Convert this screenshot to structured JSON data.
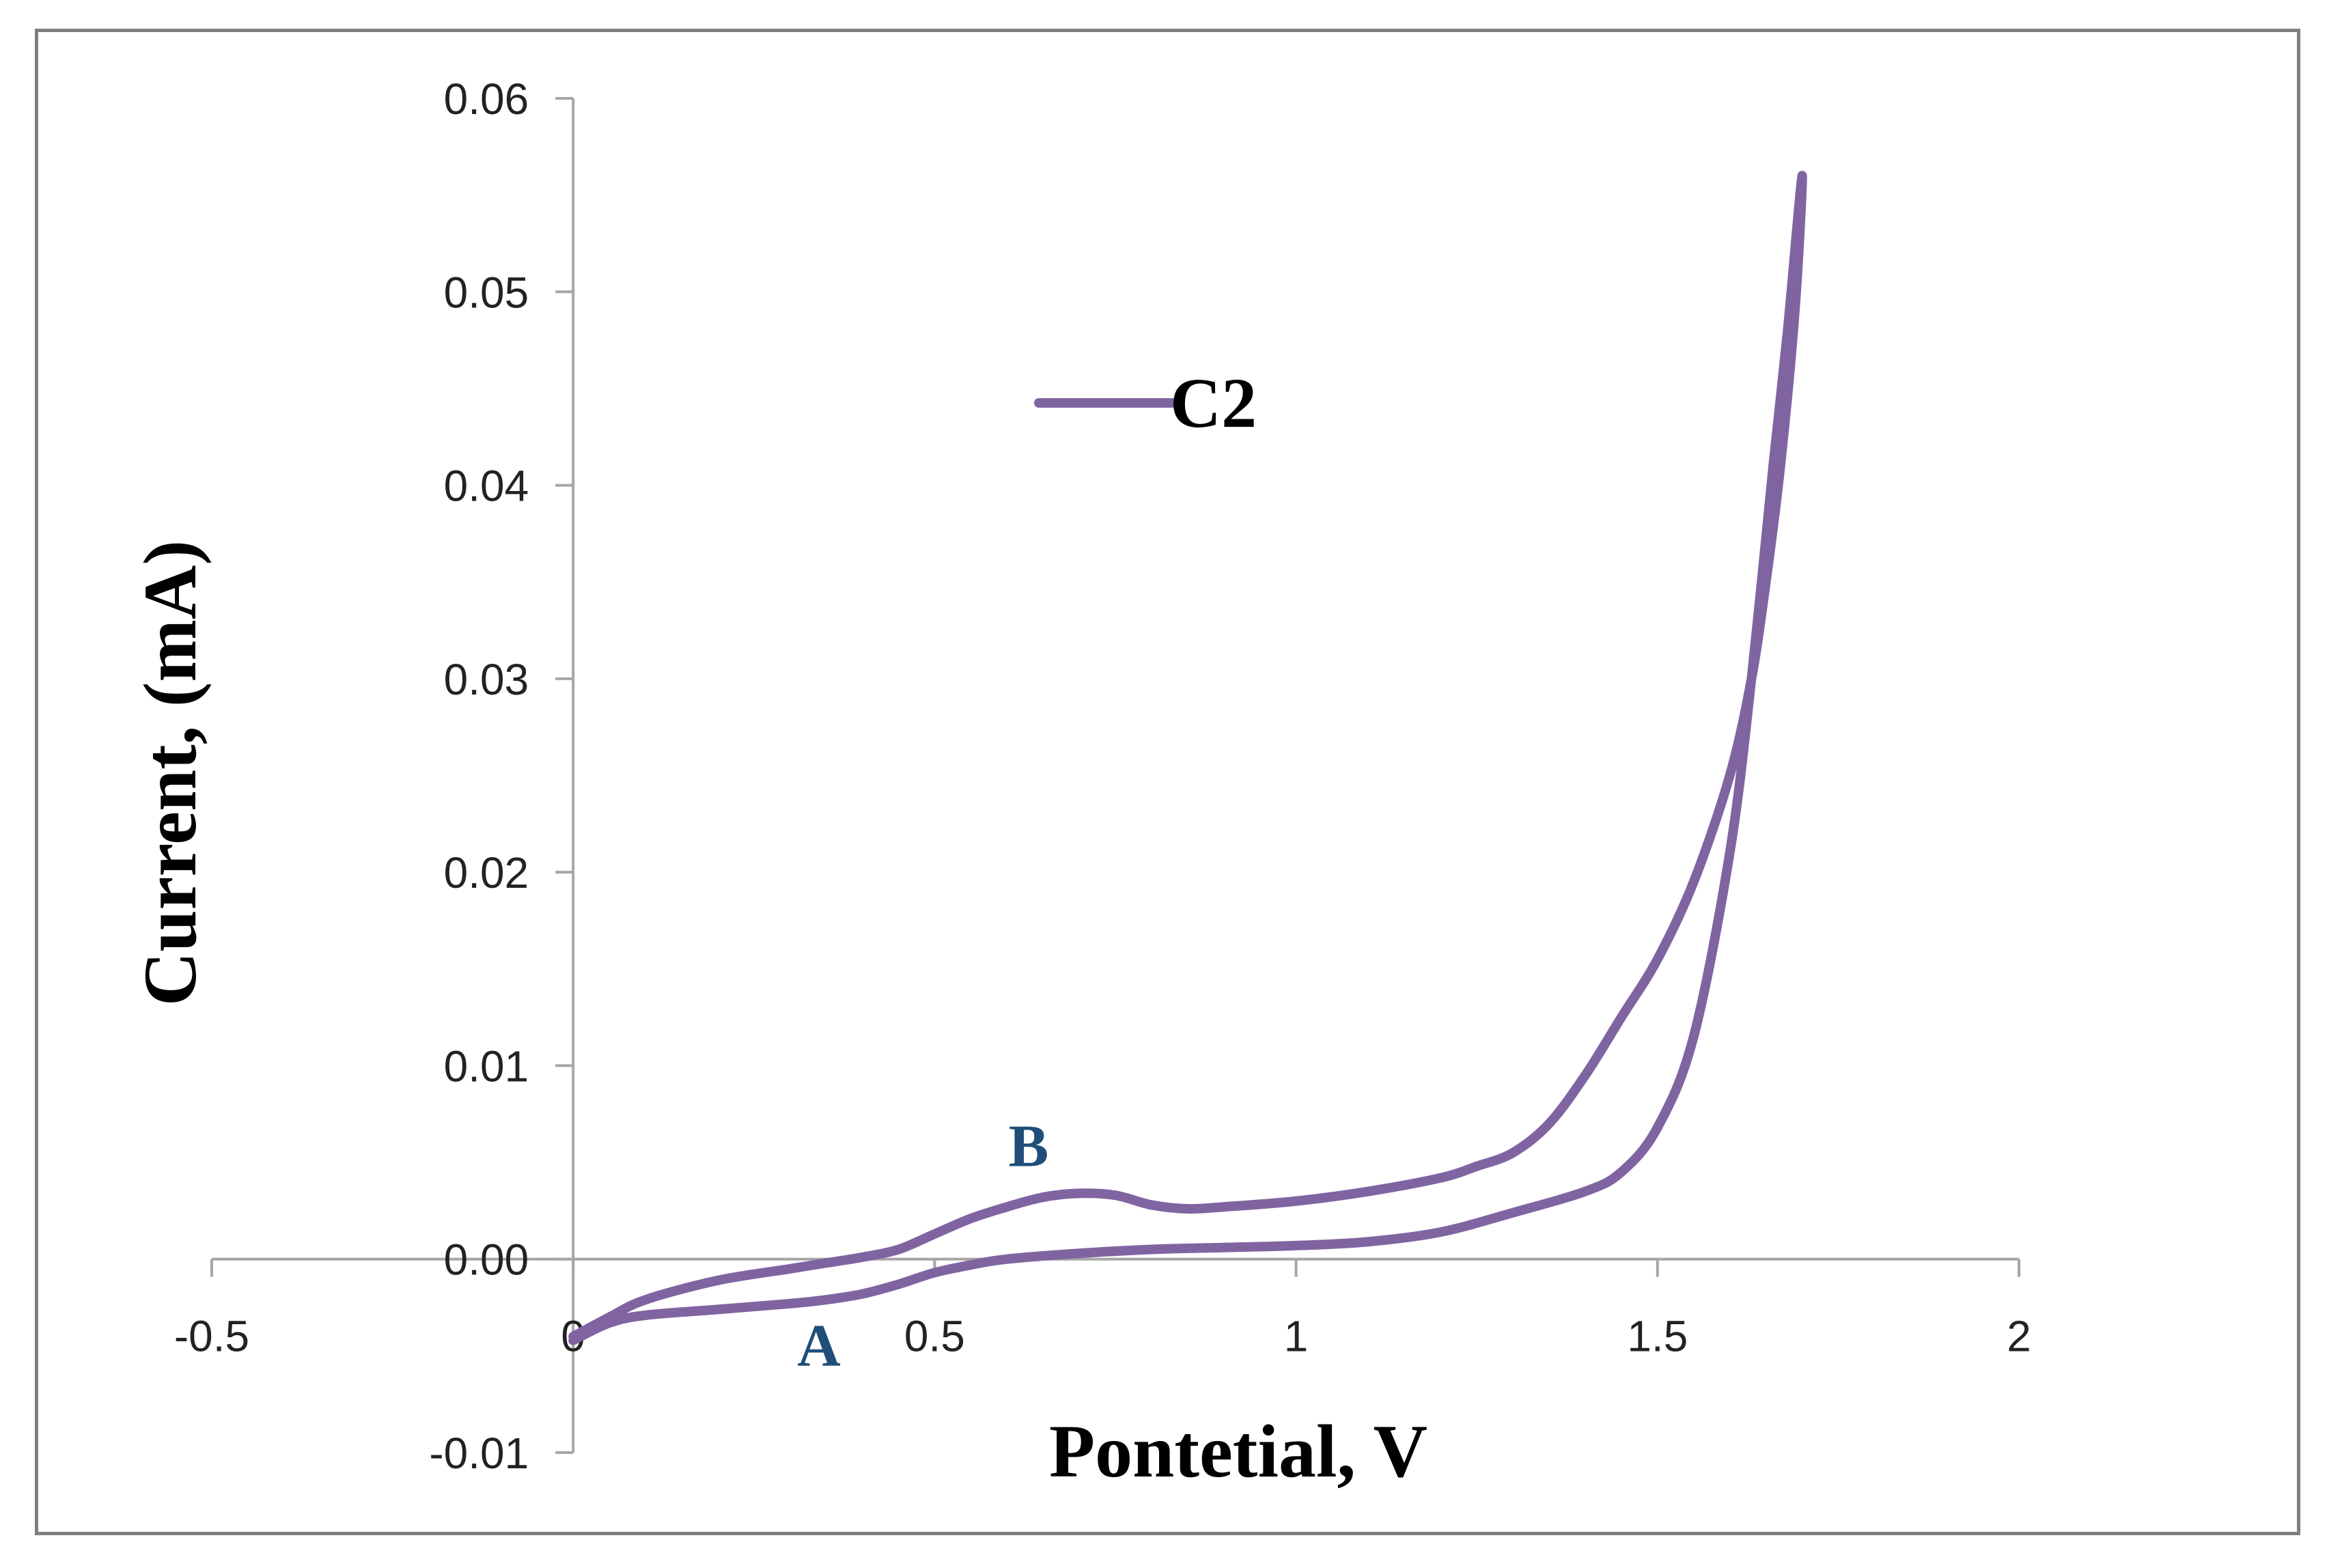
{
  "chart_data": {
    "type": "line",
    "title": "",
    "xlabel": "Pontetial, V",
    "ylabel": "Current, (mA)",
    "xlim": [
      -0.5,
      2
    ],
    "ylim": [
      -0.01,
      0.06
    ],
    "x_ticks": [
      -0.5,
      0,
      0.5,
      1,
      1.5,
      2
    ],
    "x_tick_labels": [
      "-0.5",
      "0",
      "0.5",
      "1",
      "1.5",
      "2"
    ],
    "y_ticks": [
      -0.01,
      0.0,
      0.01,
      0.02,
      0.03,
      0.04,
      0.05,
      0.06
    ],
    "y_tick_labels": [
      "-0.01",
      "0.00",
      "0.01",
      "0.02",
      "0.03",
      "0.04",
      "0.05",
      "0.06"
    ],
    "grid": false,
    "legend": {
      "position": "top-center",
      "entries": [
        "C2"
      ]
    },
    "series": [
      {
        "name": "C2",
        "color": "#8064a2",
        "x": [
          0.0,
          0.05,
          0.1,
          0.2,
          0.3,
          0.35,
          0.4,
          0.45,
          0.5,
          0.55,
          0.6,
          0.7,
          0.8,
          0.9,
          1.0,
          1.1,
          1.2,
          1.3,
          1.4,
          1.45,
          1.5,
          1.55,
          1.6,
          1.63,
          1.66,
          1.68,
          1.7,
          1.69,
          1.67,
          1.65,
          1.63,
          1.6,
          1.55,
          1.5,
          1.45,
          1.4,
          1.35,
          1.3,
          1.25,
          1.2,
          1.1,
          1.0,
          0.9,
          0.85,
          0.8,
          0.75,
          0.7,
          0.65,
          0.6,
          0.55,
          0.5,
          0.45,
          0.4,
          0.35,
          0.3,
          0.2,
          0.1,
          0.05,
          0.0
        ],
        "y": [
          -0.0042,
          -0.0033,
          -0.0029,
          -0.0026,
          -0.0023,
          -0.0021,
          -0.0018,
          -0.0013,
          -0.0007,
          -0.0003,
          0.0,
          0.0003,
          0.0005,
          0.0006,
          0.0007,
          0.0009,
          0.0014,
          0.0024,
          0.0035,
          0.0045,
          0.0068,
          0.0115,
          0.021,
          0.03,
          0.041,
          0.048,
          0.056,
          0.049,
          0.041,
          0.035,
          0.03,
          0.025,
          0.0195,
          0.0155,
          0.0125,
          0.0095,
          0.007,
          0.0055,
          0.0048,
          0.0042,
          0.0035,
          0.003,
          0.0027,
          0.0026,
          0.0028,
          0.0033,
          0.0034,
          0.0032,
          0.0027,
          0.0021,
          0.0013,
          0.0005,
          0.0001,
          -0.0002,
          -0.0005,
          -0.0011,
          -0.0021,
          -0.003,
          -0.004
        ]
      }
    ],
    "annotations": [
      {
        "text": "A",
        "x": 0.34,
        "y": -0.0055,
        "color": "#1f4e79"
      },
      {
        "text": "B",
        "x": 0.63,
        "y": 0.0048,
        "color": "#1f4e79"
      }
    ]
  }
}
